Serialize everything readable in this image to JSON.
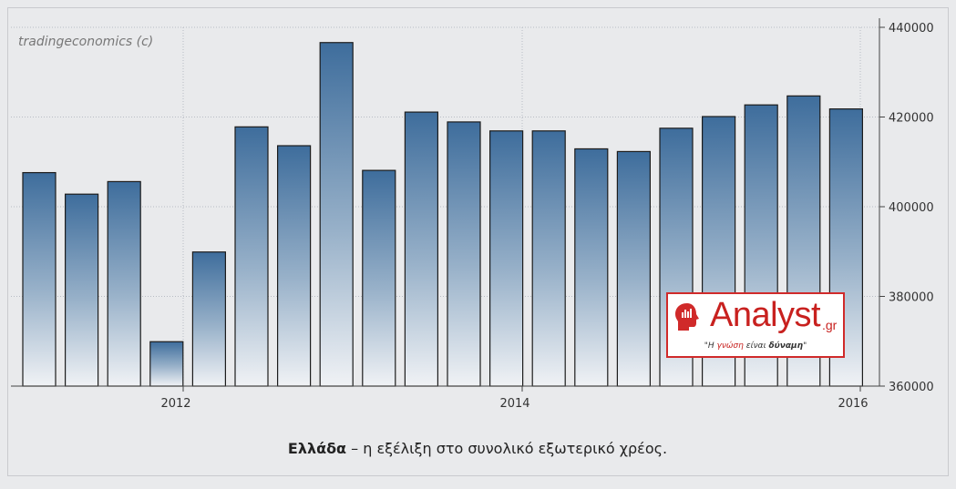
{
  "watermark": "tradingeconomics (c)",
  "caption": {
    "country": "Ελλάδα",
    "text": " – η εξέλιξη στο συνολικό εξωτερικό χρέος."
  },
  "logo": {
    "brand": "Analyst",
    "tld": ".gr",
    "slogan_open": "\"Η ",
    "slogan_red": "γνώση",
    "slogan_mid": " είναι ",
    "slogan_bold": "δύναμη",
    "slogan_close": "\"",
    "icon": "head-brain-icon",
    "color": "#c8211f"
  },
  "chart_data": {
    "type": "bar",
    "title": "",
    "xlabel": "",
    "ylabel": "",
    "x_ticks": [
      "2012",
      "2014",
      "2016"
    ],
    "y_ticks": [
      "360000",
      "380000",
      "400000",
      "420000",
      "440000"
    ],
    "ylim": [
      360000,
      440000
    ],
    "grid": true,
    "y_axis_side": "right",
    "bar_color_top": "#3e6d9c",
    "bar_color_bottom": "#f0f2f5",
    "values": [
      407600,
      402800,
      405600,
      369900,
      389900,
      417800,
      413600,
      436600,
      408100,
      421100,
      418900,
      416900,
      416900,
      412900,
      412300,
      417500,
      420100,
      422700,
      424700,
      421800
    ]
  }
}
